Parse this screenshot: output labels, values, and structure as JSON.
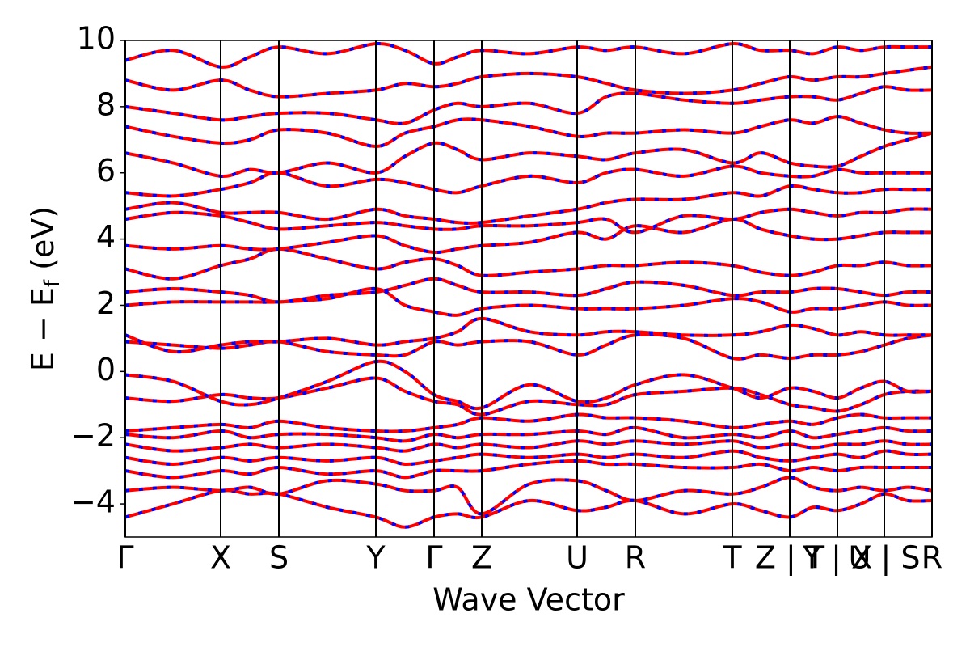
{
  "chart_data": {
    "type": "line",
    "xlabel": "Wave Vector",
    "ylabel": [
      "E − E",
      "f",
      " (eV)"
    ],
    "xlim": [
      0,
      9.98
    ],
    "ylim": [
      -5,
      10
    ],
    "xticks": [
      {
        "value": 0,
        "label": "Γ"
      },
      {
        "value": 1.18,
        "label": "X"
      },
      {
        "value": 1.9,
        "label": "S"
      },
      {
        "value": 3.1,
        "label": "Y"
      },
      {
        "value": 3.82,
        "label": "Γ"
      },
      {
        "value": 4.41,
        "label": "Z"
      },
      {
        "value": 5.59,
        "label": "U"
      },
      {
        "value": 6.31,
        "label": "R"
      },
      {
        "value": 7.51,
        "label": "T"
      },
      {
        "value": 8.22,
        "label": "Z | T"
      },
      {
        "value": 8.81,
        "label": "Y | X"
      },
      {
        "value": 9.39,
        "label": "U | S"
      },
      {
        "value": 9.98,
        "label": "R"
      }
    ],
    "yticks": [
      {
        "value": -4,
        "label": "−4"
      },
      {
        "value": -2,
        "label": "−2"
      },
      0,
      2,
      4,
      6,
      8,
      10
    ],
    "overlay_color": "#0000ff",
    "x": [
      0,
      0.59,
      1.18,
      1.54,
      1.9,
      2.5,
      3.1,
      3.46,
      3.82,
      4.11,
      4.41,
      5.0,
      5.59,
      5.95,
      6.31,
      6.91,
      7.51,
      7.86,
      8.22,
      8.51,
      8.81,
      9.1,
      9.39,
      9.68,
      9.98
    ],
    "series": [
      {
        "color": "#ff0000",
        "values": [
          -4.4,
          -4.0,
          -3.6,
          -3.7,
          -3.7,
          -4.1,
          -4.4,
          -4.7,
          -4.4,
          -4.3,
          -4.4,
          -3.9,
          -4.2,
          -4.1,
          -3.9,
          -4.3,
          -4.0,
          -4.2,
          -4.4,
          -4.1,
          -4.2,
          -4.0,
          -3.7,
          -3.9,
          -3.9
        ]
      },
      {
        "color": "#ff0000",
        "values": [
          -3.6,
          -3.5,
          -3.6,
          -3.5,
          -3.7,
          -3.3,
          -3.4,
          -3.6,
          -3.6,
          -3.5,
          -4.3,
          -3.4,
          -3.3,
          -3.6,
          -3.9,
          -3.6,
          -3.7,
          -3.5,
          -3.2,
          -3.5,
          -3.6,
          -3.5,
          -3.6,
          -3.5,
          -3.6
        ]
      },
      {
        "color": "#ff0000",
        "values": [
          -3.0,
          -3.2,
          -3.0,
          -3.1,
          -2.9,
          -3.1,
          -3.0,
          -3.2,
          -3.0,
          -3.0,
          -3.0,
          -2.8,
          -2.7,
          -2.8,
          -2.8,
          -2.9,
          -2.9,
          -2.8,
          -3.0,
          -2.9,
          -3.0,
          -2.9,
          -2.9,
          -2.9,
          -2.9
        ]
      },
      {
        "color": "#ff0000",
        "values": [
          -2.6,
          -2.8,
          -2.6,
          -2.7,
          -2.6,
          -2.7,
          -2.6,
          -2.8,
          -2.7,
          -2.6,
          -2.5,
          -2.6,
          -2.5,
          -2.6,
          -2.5,
          -2.6,
          -2.4,
          -2.6,
          -2.7,
          -2.6,
          -2.5,
          -2.6,
          -2.4,
          -2.5,
          -2.5
        ]
      },
      {
        "color": "#ff0000",
        "values": [
          -2.2,
          -2.4,
          -2.3,
          -2.2,
          -2.3,
          -2.2,
          -2.3,
          -2.4,
          -2.2,
          -2.3,
          -2.2,
          -2.3,
          -2.1,
          -2.2,
          -2.1,
          -2.2,
          -2.1,
          -2.3,
          -2.2,
          -2.3,
          -2.2,
          -2.2,
          -2.1,
          -2.2,
          -2.2
        ]
      },
      {
        "color": "#ff0000",
        "values": [
          -1.9,
          -2.0,
          -1.8,
          -2.0,
          -1.9,
          -1.9,
          -2.0,
          -2.1,
          -1.9,
          -2.0,
          -1.9,
          -1.9,
          -1.8,
          -1.9,
          -1.7,
          -2.0,
          -1.9,
          -2.0,
          -1.8,
          -2.0,
          -1.9,
          -1.8,
          -1.7,
          -1.8,
          -1.8
        ]
      },
      {
        "color": "#ff0000",
        "values": [
          -1.8,
          -1.7,
          -1.6,
          -1.7,
          -1.5,
          -1.7,
          -1.8,
          -1.8,
          -1.7,
          -1.6,
          -1.4,
          -1.5,
          -1.3,
          -1.4,
          -1.4,
          -1.5,
          -1.7,
          -1.6,
          -1.5,
          -1.6,
          -1.4,
          -1.3,
          -1.4,
          -1.4,
          -1.4
        ]
      },
      {
        "color": "#ff0000",
        "values": [
          -0.8,
          -0.9,
          -0.7,
          -0.8,
          -0.8,
          -0.5,
          -0.2,
          -0.6,
          -0.9,
          -1.0,
          -1.3,
          -0.9,
          -1.0,
          -1.0,
          -0.7,
          -0.6,
          -0.5,
          -0.7,
          -1.0,
          -1.1,
          -1.2,
          -1.0,
          -0.7,
          -0.6,
          -0.6
        ]
      },
      {
        "color": "#ff0000",
        "values": [
          -0.1,
          -0.3,
          -0.9,
          -1.0,
          -0.8,
          -0.3,
          0.3,
          0.0,
          -0.7,
          -0.9,
          -1.1,
          -0.4,
          -0.9,
          -0.8,
          -0.4,
          -0.1,
          -0.5,
          -0.8,
          -0.5,
          -0.6,
          -0.8,
          -0.5,
          -0.3,
          -0.6,
          -0.6
        ]
      },
      {
        "color": "#ff0000",
        "values": [
          0.9,
          0.8,
          0.7,
          0.8,
          0.9,
          0.6,
          0.5,
          0.5,
          0.9,
          0.8,
          0.9,
          0.9,
          0.5,
          0.8,
          1.1,
          1.0,
          0.4,
          0.5,
          0.4,
          0.5,
          0.5,
          0.6,
          0.8,
          1.0,
          1.1
        ]
      },
      {
        "color": "#ff0000",
        "values": [
          1.1,
          0.6,
          0.8,
          0.9,
          0.9,
          1.0,
          0.8,
          0.9,
          1.0,
          1.2,
          1.6,
          1.2,
          1.1,
          1.2,
          1.2,
          1.1,
          1.1,
          1.2,
          1.4,
          1.3,
          1.1,
          1.2,
          1.1,
          1.1,
          1.1
        ]
      },
      {
        "color": "#ff0000",
        "values": [
          2.0,
          2.1,
          2.1,
          2.1,
          2.1,
          2.2,
          2.5,
          2.0,
          1.8,
          1.7,
          1.9,
          2.0,
          1.9,
          1.9,
          1.9,
          2.0,
          2.2,
          2.1,
          1.8,
          1.9,
          1.9,
          2.0,
          2.1,
          2.0,
          2.0
        ]
      },
      {
        "color": "#ff0000",
        "values": [
          2.4,
          2.5,
          2.4,
          2.3,
          2.1,
          2.3,
          2.4,
          2.6,
          2.8,
          2.6,
          2.4,
          2.4,
          2.3,
          2.5,
          2.7,
          2.6,
          2.3,
          2.4,
          2.4,
          2.5,
          2.5,
          2.4,
          2.3,
          2.4,
          2.4
        ]
      },
      {
        "color": "#ff0000",
        "values": [
          3.1,
          2.8,
          3.2,
          3.4,
          3.7,
          3.4,
          3.1,
          3.3,
          3.4,
          3.2,
          2.9,
          3.0,
          3.1,
          3.2,
          3.2,
          3.3,
          3.2,
          3.0,
          2.9,
          3.0,
          3.2,
          3.2,
          3.3,
          3.2,
          3.2
        ]
      },
      {
        "color": "#ff0000",
        "values": [
          3.8,
          3.7,
          3.8,
          3.7,
          3.7,
          3.9,
          4.1,
          3.8,
          3.6,
          3.7,
          3.8,
          3.9,
          4.2,
          4.0,
          4.4,
          4.2,
          4.6,
          4.3,
          4.1,
          4.0,
          4.0,
          4.1,
          4.2,
          4.2,
          4.2
        ]
      },
      {
        "color": "#ff0000",
        "values": [
          4.6,
          4.8,
          4.7,
          4.5,
          4.3,
          4.4,
          4.5,
          4.4,
          4.3,
          4.3,
          4.4,
          4.4,
          4.5,
          4.6,
          4.2,
          4.7,
          4.6,
          4.8,
          4.9,
          4.8,
          4.7,
          4.8,
          4.8,
          4.9,
          4.9
        ]
      },
      {
        "color": "#ff0000",
        "values": [
          4.9,
          5.1,
          4.8,
          4.8,
          4.8,
          4.6,
          4.9,
          4.7,
          4.6,
          4.5,
          4.5,
          4.7,
          4.9,
          5.1,
          5.2,
          5.2,
          5.4,
          5.3,
          5.6,
          5.5,
          5.4,
          5.4,
          5.5,
          5.5,
          5.5
        ]
      },
      {
        "color": "#ff0000",
        "values": [
          5.4,
          5.3,
          5.5,
          5.7,
          6.0,
          5.6,
          5.8,
          5.7,
          5.5,
          5.4,
          5.6,
          5.9,
          5.7,
          6.0,
          6.1,
          5.9,
          6.2,
          6.0,
          5.9,
          5.9,
          6.1,
          6.0,
          6.0,
          6.0,
          6.0
        ]
      },
      {
        "color": "#ff0000",
        "values": [
          6.6,
          6.3,
          5.9,
          6.1,
          6.0,
          6.3,
          6.0,
          6.5,
          6.9,
          6.7,
          6.4,
          6.6,
          6.5,
          6.4,
          6.6,
          6.7,
          6.3,
          6.6,
          6.3,
          6.2,
          6.2,
          6.5,
          6.8,
          7.0,
          7.2
        ]
      },
      {
        "color": "#ff0000",
        "values": [
          7.4,
          7.1,
          6.9,
          7.0,
          7.3,
          7.2,
          6.8,
          7.2,
          7.4,
          7.6,
          7.6,
          7.4,
          7.1,
          7.2,
          7.2,
          7.3,
          7.2,
          7.4,
          7.6,
          7.5,
          7.7,
          7.5,
          7.3,
          7.2,
          7.2
        ]
      },
      {
        "color": "#ff0000",
        "values": [
          8.0,
          7.8,
          7.6,
          7.7,
          7.8,
          7.8,
          7.6,
          7.5,
          7.9,
          8.1,
          8.0,
          8.1,
          7.8,
          8.3,
          8.4,
          8.2,
          8.1,
          8.2,
          8.3,
          8.3,
          8.2,
          8.4,
          8.6,
          8.5,
          8.5
        ]
      },
      {
        "color": "#ff0000",
        "values": [
          8.8,
          8.5,
          8.8,
          8.5,
          8.3,
          8.4,
          8.5,
          8.7,
          8.6,
          8.7,
          8.9,
          9.0,
          8.9,
          8.7,
          8.5,
          8.4,
          8.5,
          8.7,
          8.9,
          8.8,
          8.9,
          8.9,
          9.0,
          9.1,
          9.2
        ]
      },
      {
        "color": "#ff0000",
        "values": [
          9.4,
          9.7,
          9.2,
          9.5,
          9.8,
          9.6,
          9.9,
          9.7,
          9.3,
          9.5,
          9.7,
          9.6,
          9.8,
          9.7,
          9.8,
          9.6,
          9.9,
          9.7,
          9.7,
          9.6,
          9.8,
          9.7,
          9.8,
          9.8,
          9.8
        ]
      }
    ]
  }
}
